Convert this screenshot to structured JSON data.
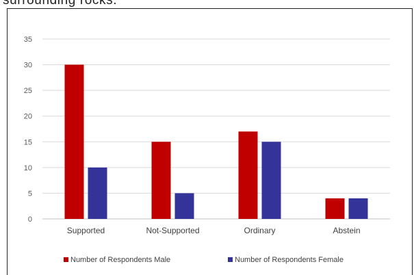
{
  "caption_fragment": "surrounding rocks.",
  "chart_data": {
    "type": "bar",
    "categories": [
      "Supported",
      "Not-Supported",
      "Ordinary",
      "Abstein"
    ],
    "series": [
      {
        "name": "Number of Respondents Male",
        "values": [
          30,
          15,
          17,
          4
        ],
        "color": "#C00000"
      },
      {
        "name": "Number of Respondents Female",
        "values": [
          10,
          5,
          15,
          4
        ],
        "color": "#333399"
      }
    ],
    "y_ticks": [
      0,
      5,
      10,
      15,
      20,
      25,
      30,
      35
    ],
    "ylim": [
      0,
      35
    ],
    "grid": true,
    "legend": "bottom",
    "title": "",
    "xlabel": "",
    "ylabel": ""
  }
}
